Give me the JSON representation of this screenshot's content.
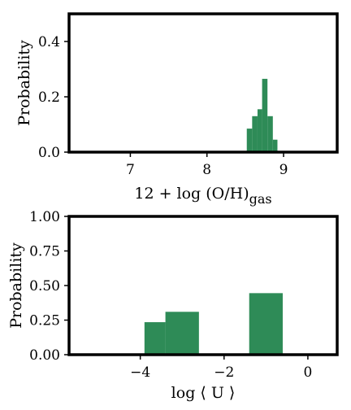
{
  "chart_data": [
    {
      "type": "bar",
      "title": "",
      "xlabel": "12 + log (O/H)",
      "xlabel_subscript": "gas",
      "ylabel": "Probability",
      "xlim": [
        6.2,
        9.7
      ],
      "ylim": [
        0.0,
        0.5
      ],
      "xticks": [
        7,
        8,
        9
      ],
      "xtick_labels": [
        "7",
        "8",
        "9"
      ],
      "yticks": [
        0.0,
        0.2,
        0.4
      ],
      "ytick_labels": [
        "0.0",
        "0.2",
        "0.4"
      ],
      "bar_color": "#2e8b57",
      "grid": false,
      "bins": [
        {
          "x0": 8.52,
          "x1": 8.59,
          "value": 0.085
        },
        {
          "x0": 8.59,
          "x1": 8.66,
          "value": 0.13
        },
        {
          "x0": 8.66,
          "x1": 8.72,
          "value": 0.155
        },
        {
          "x0": 8.72,
          "x1": 8.79,
          "value": 0.265
        },
        {
          "x0": 8.79,
          "x1": 8.86,
          "value": 0.13
        },
        {
          "x0": 8.86,
          "x1": 8.92,
          "value": 0.045
        }
      ]
    },
    {
      "type": "bar",
      "title": "",
      "xlabel": "log ⟨ U ⟩",
      "ylabel": "Probability",
      "xlim": [
        -5.7,
        0.7
      ],
      "ylim": [
        0.0,
        1.0
      ],
      "xticks": [
        -4,
        -2,
        0
      ],
      "xtick_labels": [
        "−4",
        "−2",
        "0"
      ],
      "yticks": [
        0.0,
        0.25,
        0.5,
        0.75,
        1.0
      ],
      "ytick_labels": [
        "0.00",
        "0.25",
        "0.50",
        "0.75",
        "1.00"
      ],
      "bar_color": "#2e8b57",
      "grid": false,
      "bins": [
        {
          "x0": -3.9,
          "x1": -3.4,
          "value": 0.235
        },
        {
          "x0": -3.4,
          "x1": -2.6,
          "value": 0.31
        },
        {
          "x0": -1.4,
          "x1": -0.6,
          "value": 0.445
        }
      ]
    }
  ]
}
